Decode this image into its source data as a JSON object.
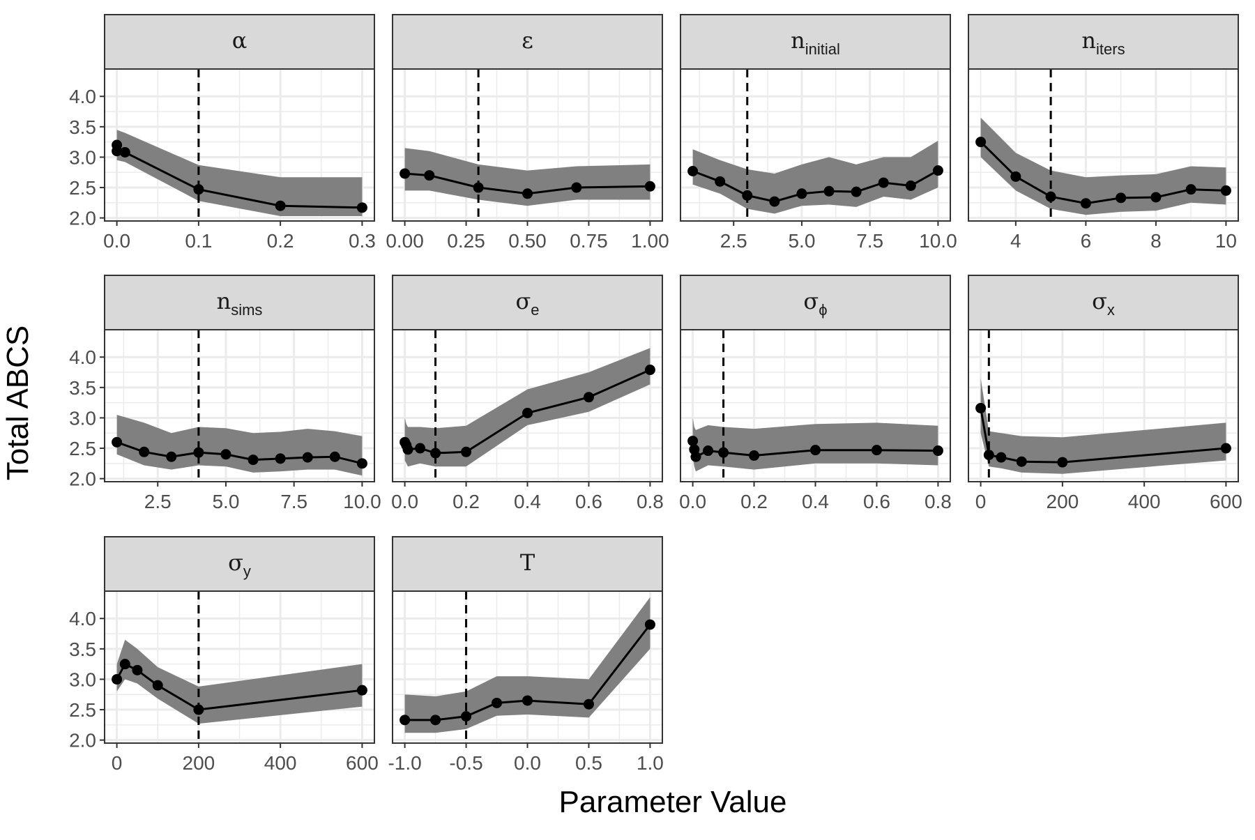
{
  "chart_data": {
    "type": "line",
    "layout": "faceted grid, 4 columns, free x scales, shared y scale",
    "xlabel": "Parameter Value",
    "ylabel": "Total ABCS",
    "ylim": [
      1.95,
      4.45
    ],
    "y_ticks": [
      2.0,
      2.5,
      3.0,
      3.5,
      4.0
    ],
    "y_tick_labels": [
      "2.0",
      "2.5",
      "3.0",
      "3.5",
      "4.0"
    ],
    "grid": true,
    "legend": "none",
    "colors": {
      "line": "#000000",
      "point": "#000000",
      "ribbon": "#808080",
      "strip_fill": "#d9d9d9",
      "grid": "#ebebeb",
      "reference_line": "#000000"
    },
    "panels": [
      {
        "title": "α",
        "title_sub": "",
        "xlim": [
          -0.015,
          0.315
        ],
        "vline": 0.1,
        "x_ticks": [
          0,
          0.1,
          0.2,
          0.3
        ],
        "x_tick_labels": [
          "0.0",
          "0.1",
          "0.2",
          "0.3"
        ],
        "x": [
          0,
          0,
          0.01,
          0.1,
          0.2,
          0.3
        ],
        "y": [
          3.2,
          3.1,
          3.08,
          2.47,
          2.2,
          2.17
        ],
        "lower": [
          3.0,
          2.95,
          2.92,
          2.28,
          2.03,
          2.03
        ],
        "upper": [
          3.57,
          3.45,
          3.4,
          2.87,
          2.67,
          2.67
        ]
      },
      {
        "title": "ε",
        "title_sub": "",
        "xlim": [
          -0.05,
          1.05
        ],
        "vline": 0.3,
        "x_ticks": [
          0,
          0.25,
          0.5,
          0.75,
          1.0
        ],
        "x_tick_labels": [
          "0.00",
          "0.25",
          "0.50",
          "0.75",
          "1.00"
        ],
        "x": [
          0,
          0.1,
          0.3,
          0.5,
          0.7,
          1.0
        ],
        "y": [
          2.73,
          2.7,
          2.5,
          2.4,
          2.5,
          2.52
        ],
        "lower": [
          2.45,
          2.45,
          2.3,
          2.2,
          2.3,
          2.3
        ],
        "upper": [
          3.15,
          3.1,
          2.88,
          2.78,
          2.85,
          2.88
        ]
      },
      {
        "title": "n",
        "title_sub": "initial",
        "xlim": [
          0.55,
          10.45
        ],
        "vline": 3,
        "x_ticks": [
          2.5,
          5.0,
          7.5,
          10.0
        ],
        "x_tick_labels": [
          "2.5",
          "5.0",
          "7.5",
          "10.0"
        ],
        "x": [
          1,
          2,
          3,
          4,
          5,
          6,
          7,
          8,
          9,
          10
        ],
        "y": [
          2.77,
          2.6,
          2.37,
          2.27,
          2.4,
          2.44,
          2.43,
          2.58,
          2.53,
          2.78
        ],
        "lower": [
          2.55,
          2.4,
          2.15,
          2.07,
          2.2,
          2.22,
          2.18,
          2.35,
          2.3,
          2.5
        ],
        "upper": [
          3.13,
          2.95,
          2.8,
          2.73,
          2.88,
          3.0,
          2.88,
          3.0,
          3.0,
          3.27
        ]
      },
      {
        "title": "n",
        "title_sub": "iters",
        "xlim": [
          2.65,
          10.35
        ],
        "vline": 5,
        "x_ticks": [
          4,
          6,
          8,
          10
        ],
        "x_tick_labels": [
          "4",
          "6",
          "8",
          "10"
        ],
        "x": [
          3,
          4,
          5,
          6,
          7,
          8,
          9,
          10
        ],
        "y": [
          3.25,
          2.68,
          2.35,
          2.24,
          2.33,
          2.34,
          2.47,
          2.45
        ],
        "lower": [
          3.0,
          2.45,
          2.15,
          2.05,
          2.1,
          2.12,
          2.25,
          2.22
        ],
        "upper": [
          3.65,
          3.07,
          2.78,
          2.67,
          2.7,
          2.72,
          2.85,
          2.83
        ]
      },
      {
        "title": "n",
        "title_sub": "sims",
        "xlim": [
          0.55,
          10.45
        ],
        "vline": 4,
        "x_ticks": [
          2.5,
          5.0,
          7.5,
          10.0
        ],
        "x_tick_labels": [
          "2.5",
          "5.0",
          "7.5",
          "10.0"
        ],
        "x": [
          1,
          2,
          3,
          4,
          5,
          6,
          7,
          8,
          9,
          10
        ],
        "y": [
          2.6,
          2.44,
          2.36,
          2.43,
          2.4,
          2.31,
          2.33,
          2.35,
          2.36,
          2.25
        ],
        "lower": [
          2.4,
          2.22,
          2.15,
          2.22,
          2.2,
          2.1,
          2.12,
          2.15,
          2.15,
          2.05
        ],
        "upper": [
          3.05,
          2.92,
          2.75,
          2.85,
          2.83,
          2.75,
          2.77,
          2.82,
          2.78,
          2.7
        ]
      },
      {
        "title": "σ",
        "title_sub": "e",
        "xlim": [
          -0.04,
          0.84
        ],
        "vline": 0.1,
        "x_ticks": [
          0,
          0.2,
          0.4,
          0.6,
          0.8
        ],
        "x_tick_labels": [
          "0.0",
          "0.2",
          "0.4",
          "0.6",
          "0.8"
        ],
        "x": [
          0,
          0.005,
          0.01,
          0.05,
          0.1,
          0.2,
          0.4,
          0.6,
          0.8
        ],
        "y": [
          2.6,
          2.55,
          2.48,
          2.5,
          2.42,
          2.44,
          3.08,
          3.34,
          3.79
        ],
        "lower": [
          2.3,
          2.25,
          2.2,
          2.25,
          2.2,
          2.2,
          2.88,
          3.1,
          3.55
        ],
        "upper": [
          3.0,
          2.9,
          2.85,
          2.85,
          2.83,
          2.87,
          3.47,
          3.75,
          4.15
        ]
      },
      {
        "title": "σ",
        "title_sub": "ϕ",
        "xlim": [
          -0.04,
          0.84
        ],
        "vline": 0.1,
        "x_ticks": [
          0,
          0.2,
          0.4,
          0.6,
          0.8
        ],
        "x_tick_labels": [
          "0.0",
          "0.2",
          "0.4",
          "0.6",
          "0.8"
        ],
        "x": [
          0,
          0.005,
          0.01,
          0.05,
          0.1,
          0.2,
          0.4,
          0.6,
          0.8
        ],
        "y": [
          2.62,
          2.48,
          2.36,
          2.46,
          2.43,
          2.38,
          2.47,
          2.47,
          2.46
        ],
        "lower": [
          2.35,
          2.2,
          2.12,
          2.22,
          2.2,
          2.15,
          2.25,
          2.25,
          2.22
        ],
        "upper": [
          3.0,
          2.85,
          2.8,
          2.88,
          2.85,
          2.82,
          2.9,
          2.92,
          2.87
        ]
      },
      {
        "title": "σ",
        "title_sub": "x",
        "xlim": [
          -30,
          630
        ],
        "vline": 20,
        "x_ticks": [
          0,
          200,
          400,
          600
        ],
        "x_tick_labels": [
          "0",
          "200",
          "400",
          "600"
        ],
        "x": [
          0,
          20,
          50,
          100,
          200,
          600
        ],
        "y": [
          3.16,
          2.39,
          2.35,
          2.28,
          2.27,
          2.5
        ],
        "lower": [
          2.75,
          2.2,
          2.17,
          2.1,
          2.08,
          2.3
        ],
        "upper": [
          3.65,
          2.78,
          2.75,
          2.7,
          2.68,
          2.92
        ]
      },
      {
        "title": "σ",
        "title_sub": "y",
        "xlim": [
          -30,
          630
        ],
        "vline": 200,
        "x_ticks": [
          0,
          200,
          400,
          600
        ],
        "x_tick_labels": [
          "0",
          "200",
          "400",
          "600"
        ],
        "x": [
          0,
          20,
          50,
          100,
          200,
          600
        ],
        "y": [
          3.0,
          3.25,
          3.15,
          2.9,
          2.5,
          2.82
        ],
        "lower": [
          2.8,
          3.0,
          2.93,
          2.68,
          2.27,
          2.55
        ],
        "upper": [
          3.25,
          3.65,
          3.5,
          3.2,
          2.88,
          3.25
        ]
      },
      {
        "title": "T",
        "title_sub": "",
        "xlim": [
          -1.1,
          1.1
        ],
        "vline": -0.5,
        "x_ticks": [
          -1.0,
          -0.5,
          0.0,
          0.5,
          1.0
        ],
        "x_tick_labels": [
          "-1.0",
          "-0.5",
          "0.0",
          "0.5",
          "1.0"
        ],
        "x": [
          -1.0,
          -0.75,
          -0.5,
          -0.25,
          0.0,
          0.5,
          1.0
        ],
        "y": [
          2.33,
          2.33,
          2.39,
          2.61,
          2.65,
          2.59,
          3.9
        ],
        "lower": [
          2.12,
          2.12,
          2.18,
          2.4,
          2.42,
          2.37,
          3.5
        ],
        "upper": [
          2.75,
          2.72,
          2.8,
          3.05,
          3.05,
          3.0,
          4.35
        ]
      }
    ]
  }
}
